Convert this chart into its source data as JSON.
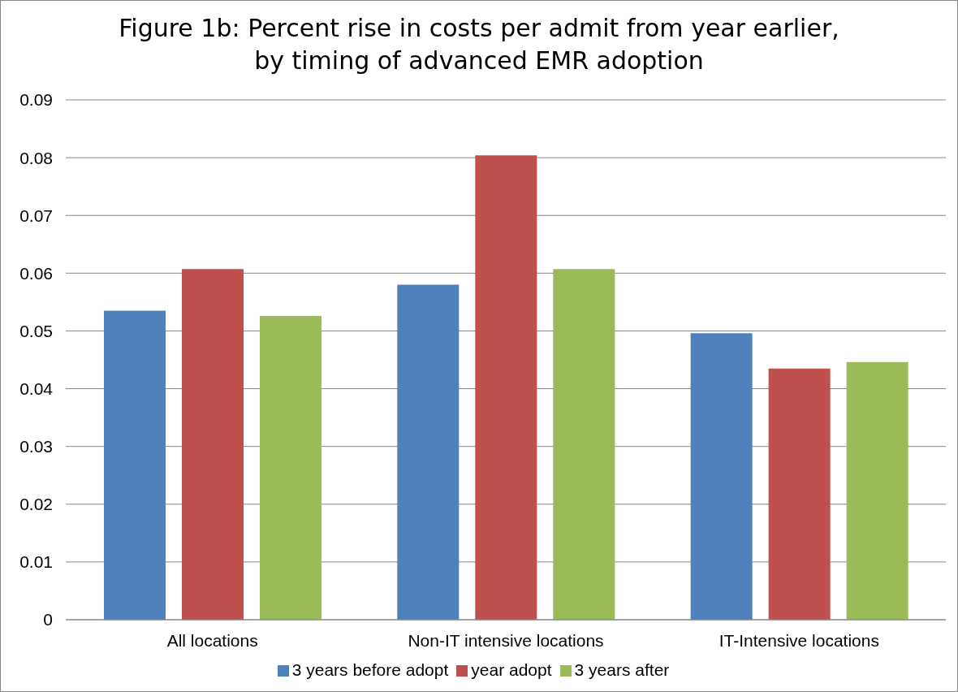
{
  "chart_data": {
    "type": "bar",
    "title": "Figure 1b: Percent rise in costs per admit from year earlier, by timing of advanced EMR adoption",
    "categories": [
      "All locations",
      "Non-IT intensive locations",
      "IT-Intensive locations"
    ],
    "series": [
      {
        "name": "3 years before adopt",
        "color": "#4f81bd",
        "values": [
          0.0535,
          0.058,
          0.0496
        ]
      },
      {
        "name": "year adopt",
        "color": "#c0504d",
        "values": [
          0.0607,
          0.0804,
          0.0435
        ]
      },
      {
        "name": "3 years after",
        "color": "#9bbb59",
        "values": [
          0.0526,
          0.0607,
          0.0446
        ]
      }
    ],
    "ylim": [
      0,
      0.09
    ],
    "yticks": [
      0,
      0.01,
      0.02,
      0.03,
      0.04,
      0.05,
      0.06,
      0.07,
      0.08,
      0.09
    ],
    "grid": "y",
    "legend": "bottom"
  }
}
